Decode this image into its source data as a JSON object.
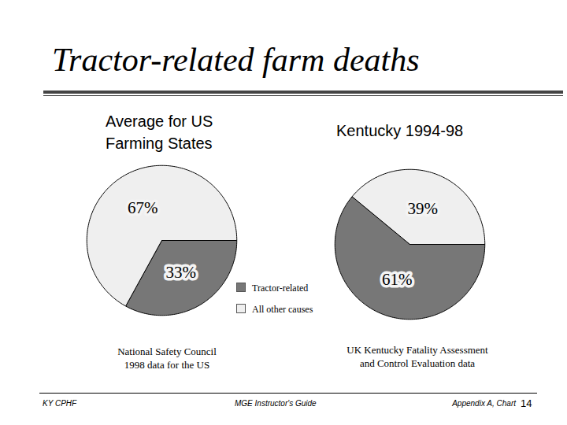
{
  "title": "Tractor-related farm deaths",
  "chart_data": [
    {
      "type": "pie",
      "title": "Average for US\nFarming States",
      "categories": [
        "Tractor-related",
        "All other causes"
      ],
      "values": [
        33,
        67
      ],
      "value_labels": [
        "33%",
        "67%"
      ],
      "colors": [
        "#777777",
        "#efefef"
      ],
      "data_labels": true,
      "legend": "right",
      "caption": "National Safety Council\n1998 data for the US"
    },
    {
      "type": "pie",
      "title": "Kentucky 1994-98",
      "categories": [
        "Tractor-related",
        "All other causes"
      ],
      "values": [
        61,
        39
      ],
      "value_labels": [
        "61%",
        "39%"
      ],
      "colors": [
        "#777777",
        "#efefef"
      ],
      "data_labels": true,
      "caption": "UK Kentucky Fatality Assessment\nand Control Evaluation data"
    }
  ],
  "footer": {
    "left": "KY CPHF",
    "center": "MGE Instructor's Guide",
    "right": "Appendix A, Chart",
    "page": 14
  }
}
